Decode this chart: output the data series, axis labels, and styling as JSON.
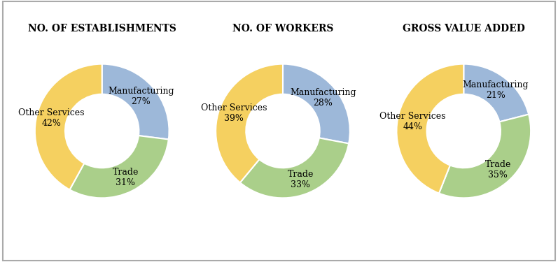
{
  "charts": [
    {
      "title": "NO. OF ESTABLISHMENTS",
      "labels": [
        "Manufacturing",
        "Trade",
        "Other Services"
      ],
      "values": [
        27,
        31,
        42
      ],
      "colors": [
        "#9db8d9",
        "#aacf8a",
        "#f5d060"
      ]
    },
    {
      "title": "NO. OF WORKERS",
      "labels": [
        "Manufacturing",
        "Trade",
        "Other Services"
      ],
      "values": [
        28,
        33,
        39
      ],
      "colors": [
        "#9db8d9",
        "#aacf8a",
        "#f5d060"
      ]
    },
    {
      "title": "GROSS VALUE ADDED",
      "labels": [
        "Manufacturing",
        "Trade",
        "Other Services"
      ],
      "values": [
        21,
        35,
        44
      ],
      "colors": [
        "#9db8d9",
        "#aacf8a",
        "#f5d060"
      ]
    }
  ],
  "background_color": "#ffffff",
  "title_fontsize": 10,
  "label_fontsize": 9,
  "wedge_edge_color": "#ffffff",
  "donut_width": 0.45
}
